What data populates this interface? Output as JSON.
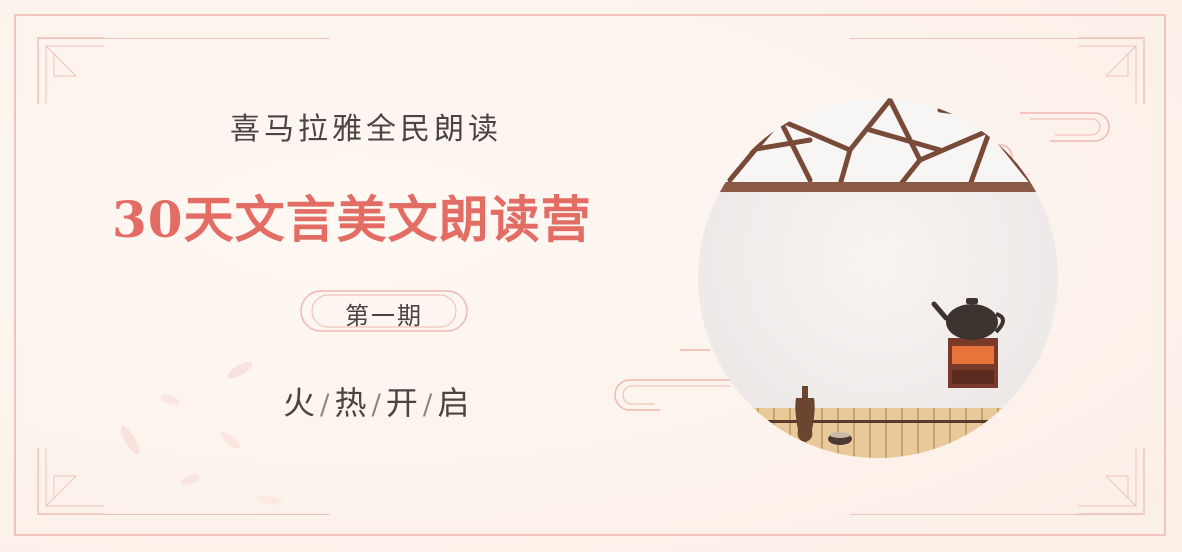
{
  "banner": {
    "organizer": "喜马拉雅全民朗读",
    "title": "30天文言美文朗读营",
    "issue": "第一期",
    "subtitle_words": [
      "火",
      "热",
      "开",
      "启"
    ],
    "separator": "/"
  },
  "colors": {
    "background": "#fdf5ef",
    "frame": "#f2c3bd",
    "title_red": "#e36d65",
    "text_dark": "#4a4540",
    "branch_brown": "#7a4a38"
  },
  "icons": [
    "corner-ornament-icon",
    "teapot-icon",
    "stove-icon",
    "sake-bottle-icon",
    "cup-icon",
    "cloud-swirl-icon",
    "petal-icon"
  ]
}
